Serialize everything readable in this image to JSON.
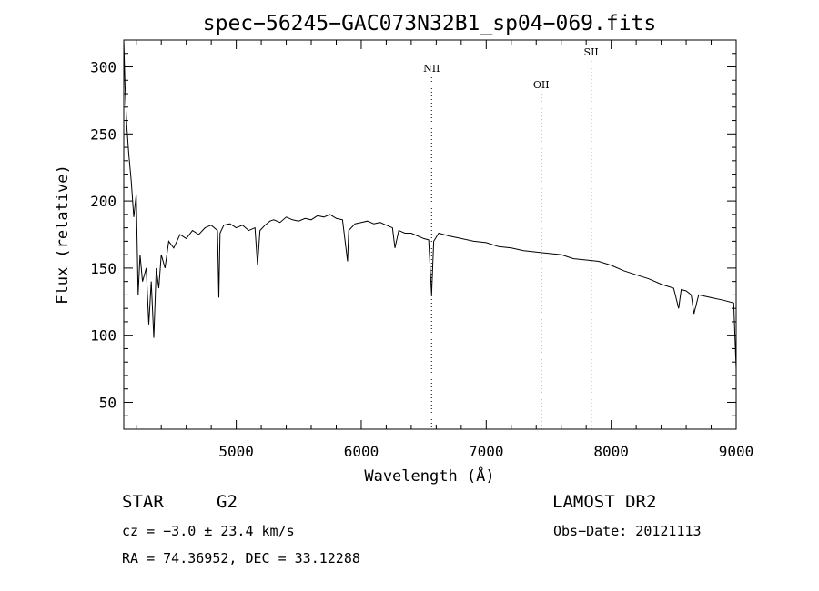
{
  "chart_data": {
    "type": "line",
    "title": "spec−56245−GAC073N32B1_sp04−069.fits",
    "xlabel": "Wavelength (Å)",
    "ylabel": "Flux (relative)",
    "xlim": [
      4100,
      9000
    ],
    "ylim": [
      30,
      320
    ],
    "xticks": [
      5000,
      6000,
      7000,
      8000,
      9000
    ],
    "yticks": [
      50,
      100,
      150,
      200,
      250,
      300
    ],
    "grid": false,
    "series": [
      {
        "x": [
          4100,
          4110,
          4125,
          4140,
          4160,
          4180,
          4200,
          4215,
          4230,
          4250,
          4280,
          4300,
          4320,
          4340,
          4360,
          4380,
          4400,
          4430,
          4460,
          4500,
          4550,
          4600,
          4650,
          4700,
          4750,
          4800,
          4850,
          4861,
          4870,
          4900,
          4950,
          5000,
          5050,
          5100,
          5150,
          5170,
          5190,
          5230,
          5270,
          5300,
          5350,
          5400,
          5450,
          5500,
          5550,
          5600,
          5650,
          5700,
          5750,
          5800,
          5850,
          5890,
          5900,
          5950,
          6000,
          6050,
          6100,
          6150,
          6200,
          6250,
          6270,
          6300,
          6350,
          6400,
          6450,
          6500,
          6540,
          6563,
          6580,
          6620,
          6700,
          6800,
          6900,
          7000,
          7100,
          7200,
          7300,
          7400,
          7500,
          7600,
          7700,
          7800,
          7900,
          8000,
          8100,
          8200,
          8300,
          8400,
          8500,
          8540,
          8560,
          8600,
          8640,
          8662,
          8700,
          8800,
          8900,
          8980,
          9000
        ],
        "y": [
          320,
          285,
          255,
          235,
          215,
          188,
          205,
          130,
          160,
          140,
          150,
          108,
          140,
          98,
          150,
          135,
          160,
          150,
          170,
          165,
          175,
          172,
          178,
          175,
          180,
          182,
          178,
          128,
          176,
          182,
          183,
          180,
          182,
          178,
          180,
          152,
          178,
          182,
          185,
          186,
          184,
          188,
          186,
          185,
          187,
          186,
          189,
          188,
          190,
          187,
          186,
          155,
          178,
          183,
          184,
          185,
          183,
          184,
          182,
          180,
          165,
          178,
          176,
          176,
          174,
          172,
          171,
          130,
          170,
          176,
          174,
          172,
          170,
          169,
          166,
          165,
          163,
          162,
          161,
          160,
          157,
          156,
          155,
          152,
          148,
          145,
          142,
          138,
          135,
          120,
          134,
          133,
          130,
          116,
          130,
          128,
          126,
          124,
          75
        ]
      }
    ],
    "annotations": [
      {
        "x": 6563,
        "label": "NII"
      },
      {
        "x": 7440,
        "label": "OII"
      },
      {
        "x": 7840,
        "label": "SII"
      }
    ]
  },
  "info": {
    "object_type": "STAR",
    "subclass": "G2",
    "survey": "LAMOST DR2",
    "cz": "cz = −3.0 ± 23.4 km/s",
    "obs_date": "Obs−Date: 20121113",
    "radec": "RA =  74.36952, DEC =  33.12288"
  }
}
